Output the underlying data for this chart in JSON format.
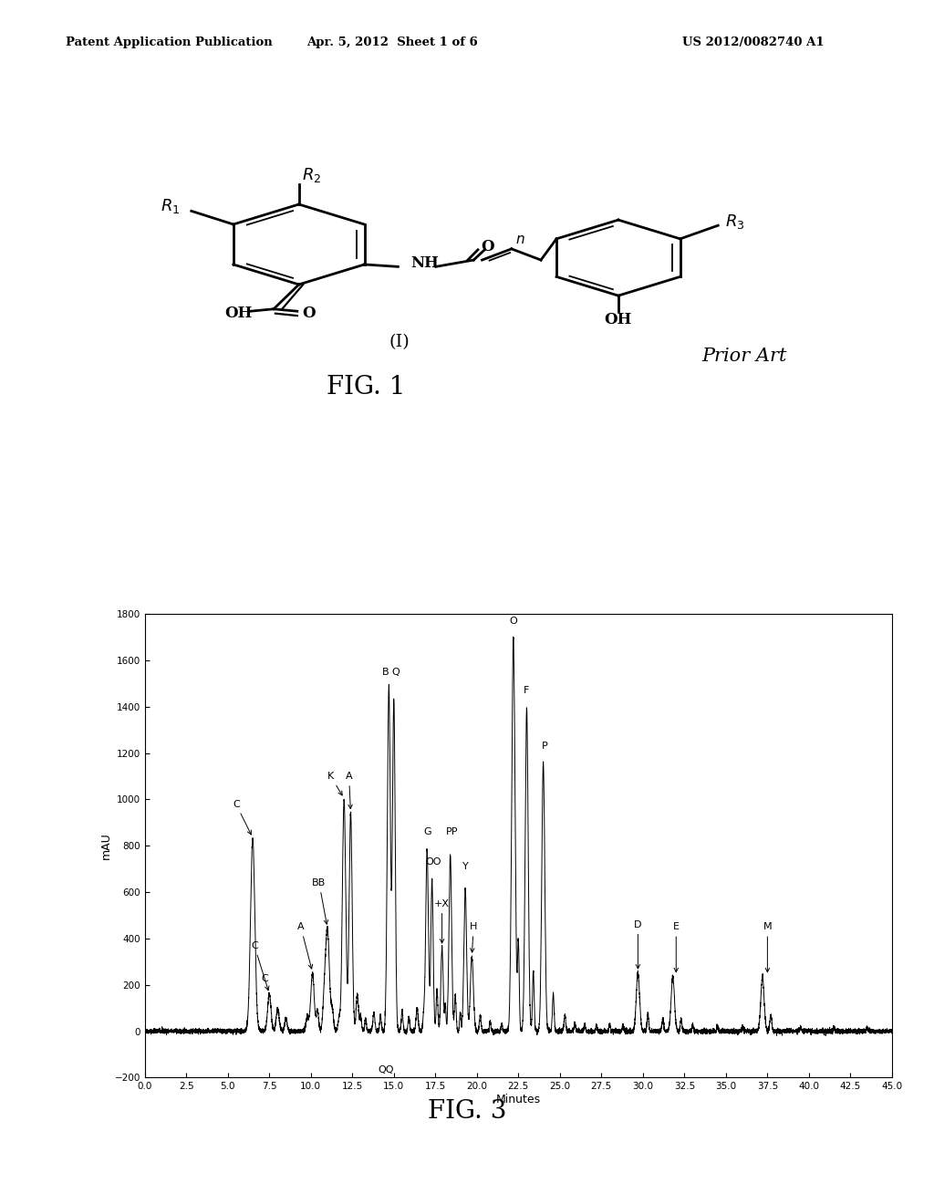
{
  "header_left": "Patent Application Publication",
  "header_mid": "Apr. 5, 2012  Sheet 1 of 6",
  "header_right": "US 2012/0082740 A1",
  "fig1_label": "FIG. 1",
  "prior_art": "Prior Art",
  "fig3_label": "FIG. 3",
  "ylabel": "mAU",
  "xlabel": "Minutes",
  "xlim": [
    0.0,
    45.0
  ],
  "ylim": [
    -200,
    1800
  ],
  "yticks": [
    -200,
    0,
    200,
    400,
    600,
    800,
    1000,
    1200,
    1400,
    1600,
    1800
  ],
  "xticks": [
    0.0,
    2.5,
    5.0,
    7.5,
    10.0,
    12.5,
    15.0,
    17.5,
    20.0,
    22.5,
    25.0,
    27.5,
    30.0,
    32.5,
    35.0,
    37.5,
    40.0,
    42.5,
    45.0
  ],
  "bg_color": "#ffffff"
}
